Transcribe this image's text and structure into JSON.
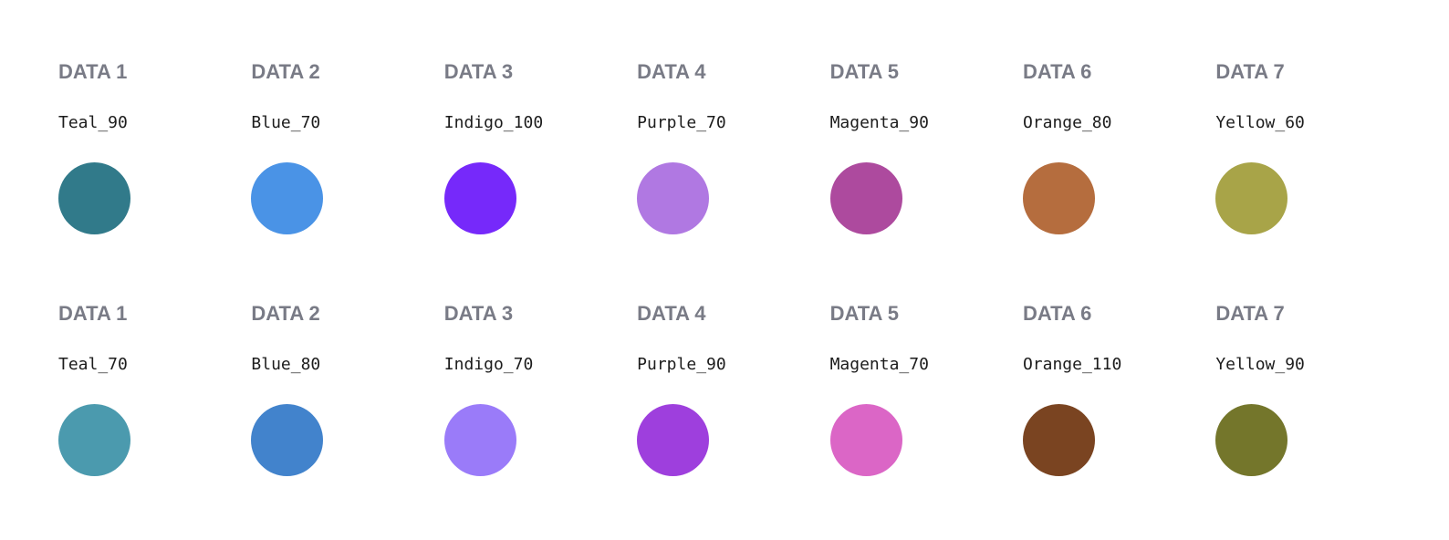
{
  "rows": [
    {
      "swatches": [
        {
          "label": "DATA 1",
          "token": "Teal_90",
          "color": "#317a8a"
        },
        {
          "label": "DATA 2",
          "token": "Blue_70",
          "color": "#4a93e6"
        },
        {
          "label": "DATA 3",
          "token": "Indigo_100",
          "color": "#7629fa"
        },
        {
          "label": "DATA 4",
          "token": "Purple_70",
          "color": "#b078e2"
        },
        {
          "label": "DATA 5",
          "token": "Magenta_90",
          "color": "#ad4a9e"
        },
        {
          "label": "DATA 6",
          "token": "Orange_80",
          "color": "#b56d3e"
        },
        {
          "label": "DATA 7",
          "token": "Yellow_60",
          "color": "#a8a448"
        }
      ]
    },
    {
      "swatches": [
        {
          "label": "DATA 1",
          "token": "Teal_70",
          "color": "#4b9aae"
        },
        {
          "label": "DATA 2",
          "token": "Blue_80",
          "color": "#4283cc"
        },
        {
          "label": "DATA 3",
          "token": "Indigo_70",
          "color": "#9a7bf9"
        },
        {
          "label": "DATA 4",
          "token": "Purple_90",
          "color": "#9e3fdd"
        },
        {
          "label": "DATA 5",
          "token": "Magenta_70",
          "color": "#db66c6"
        },
        {
          "label": "DATA 6",
          "token": "Orange_110",
          "color": "#7a4421"
        },
        {
          "label": "DATA 7",
          "token": "Yellow_90",
          "color": "#74762b"
        }
      ]
    }
  ]
}
